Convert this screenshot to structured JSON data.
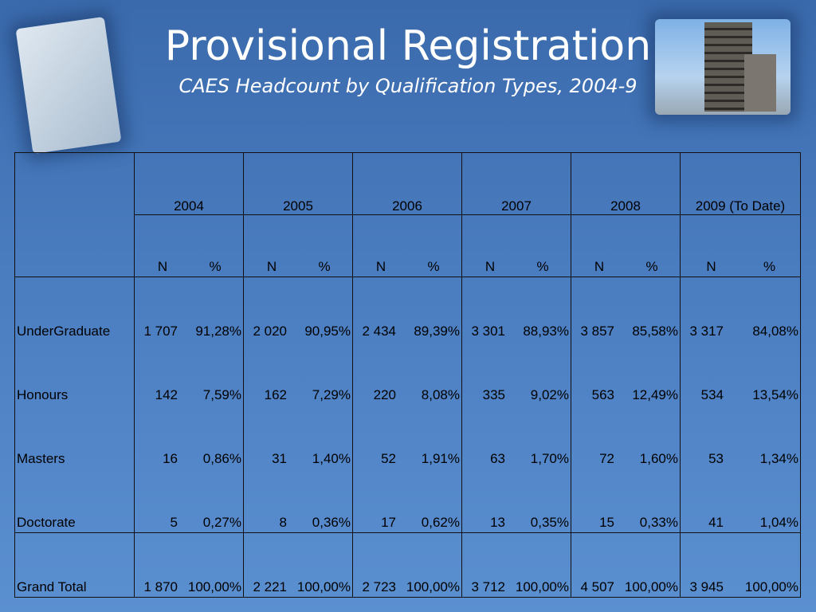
{
  "title": "Provisional Registration",
  "subtitle": "CAES  Headcount by Qualification Types, 2004-9",
  "images": {
    "left": "efficiency-chart-photo",
    "right": "building-photo"
  },
  "table": {
    "years": [
      "2004",
      "2005",
      "2006",
      "2007",
      "2008",
      "2009 (To Date)"
    ],
    "n_label": "N",
    "pct_label": "%",
    "rows": [
      {
        "label": "UnderGraduate",
        "values": [
          [
            "1 707",
            "91,28%"
          ],
          [
            "2 020",
            "90,95%"
          ],
          [
            "2 434",
            "89,39%"
          ],
          [
            "3 301",
            "88,93%"
          ],
          [
            "3 857",
            "85,58%"
          ],
          [
            "3 317",
            "84,08%"
          ]
        ]
      },
      {
        "label": "Honours",
        "values": [
          [
            "142",
            "7,59%"
          ],
          [
            "162",
            "7,29%"
          ],
          [
            "220",
            "8,08%"
          ],
          [
            "335",
            "9,02%"
          ],
          [
            "563",
            "12,49%"
          ],
          [
            "534",
            "13,54%"
          ]
        ]
      },
      {
        "label": "Masters",
        "values": [
          [
            "16",
            "0,86%"
          ],
          [
            "31",
            "1,40%"
          ],
          [
            "52",
            "1,91%"
          ],
          [
            "63",
            "1,70%"
          ],
          [
            "72",
            "1,60%"
          ],
          [
            "53",
            "1,34%"
          ]
        ]
      },
      {
        "label": "Doctorate",
        "values": [
          [
            "5",
            "0,27%"
          ],
          [
            "8",
            "0,36%"
          ],
          [
            "17",
            "0,62%"
          ],
          [
            "13",
            "0,35%"
          ],
          [
            "15",
            "0,33%"
          ],
          [
            "41",
            "1,04%"
          ]
        ]
      }
    ],
    "total": {
      "label": "Grand Total",
      "values": [
        [
          "1 870",
          "100,00%"
        ],
        [
          "2 221",
          "100,00%"
        ],
        [
          "2 723",
          "100,00%"
        ],
        [
          "3 712",
          "100,00%"
        ],
        [
          "4 507",
          "100,00%"
        ],
        [
          "3 945",
          "100,00%"
        ]
      ]
    }
  }
}
